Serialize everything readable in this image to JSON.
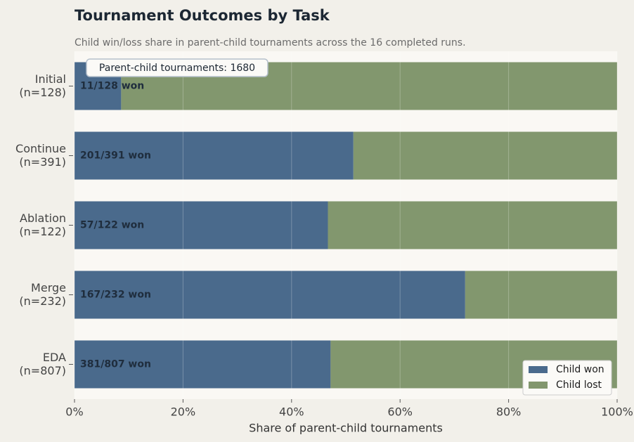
{
  "chart_data": {
    "type": "bar",
    "orientation": "horizontal",
    "stacked": true,
    "title": "Tournament Outcomes by Task",
    "subtitle": "Child win/loss share in parent-child tournaments across the 16 completed runs.",
    "xlabel": "Share of parent-child tournaments",
    "annotation": "Parent-child tournaments: 1680",
    "categories": [
      "Initial\n(n=128)",
      "Continue\n(n=391)",
      "Ablation\n(n=122)",
      "Merge\n(n=232)",
      "EDA\n(n=807)"
    ],
    "series": [
      {
        "name": "Child won",
        "color": "#4a6a8c",
        "values": [
          8.6,
          51.4,
          46.7,
          72.0,
          47.2
        ],
        "value_labels": [
          "11/128 won",
          "201/391 won",
          "57/122 won",
          "167/232 won",
          "381/807 won"
        ]
      },
      {
        "name": "Child lost",
        "color": "#82976e",
        "values": [
          91.4,
          48.6,
          53.3,
          28.0,
          52.8
        ]
      }
    ],
    "xlim": [
      0,
      100
    ],
    "xticks": [
      {
        "value": 0,
        "label": "0%"
      },
      {
        "value": 20,
        "label": "20%"
      },
      {
        "value": 40,
        "label": "40%"
      },
      {
        "value": 60,
        "label": "60%"
      },
      {
        "value": 80,
        "label": "80%"
      },
      {
        "value": 100,
        "label": "100%"
      }
    ],
    "grid": true,
    "legend": "lower right"
  }
}
